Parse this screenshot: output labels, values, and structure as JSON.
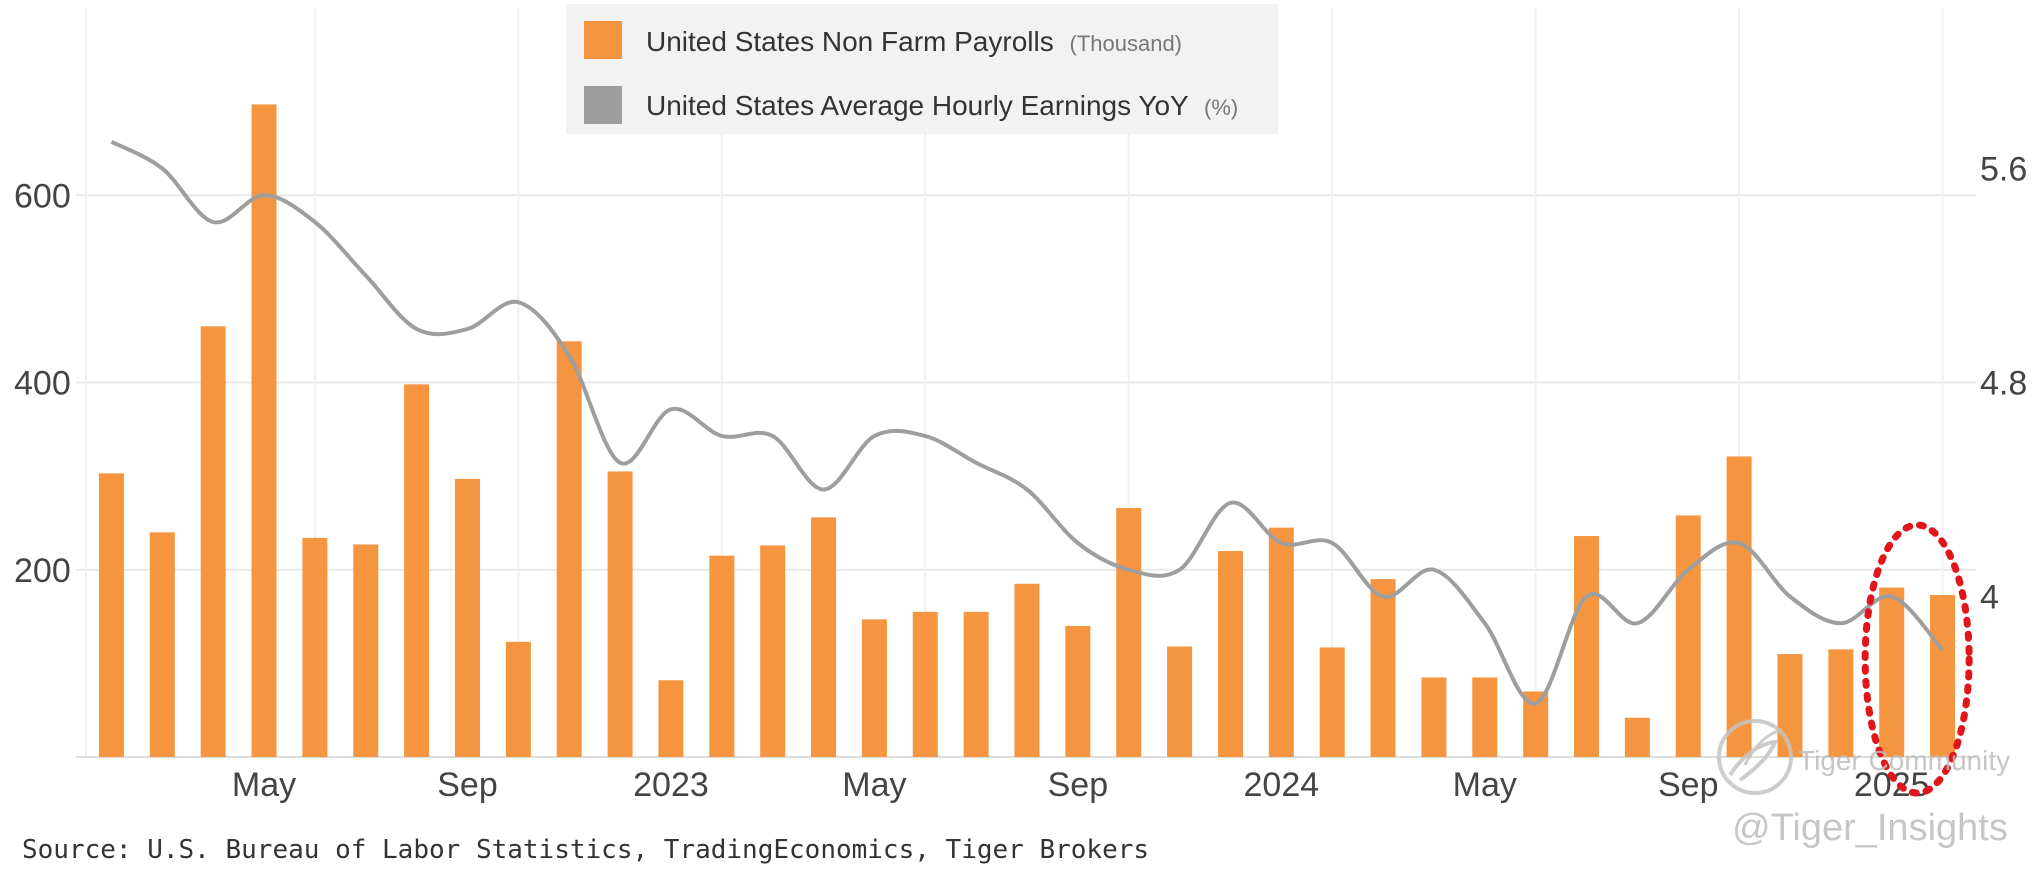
{
  "colors": {
    "payrolls": "#f5953f",
    "earnings": "#9e9e9e",
    "highlight": "#e0161b",
    "grid": "#e9e9e9",
    "legend_bg": "#f2f2f2"
  },
  "legend": {
    "items": [
      {
        "label": "United States Non Farm Payrolls",
        "unit": "(Thousand)"
      },
      {
        "label": "United States Average Hourly Earnings YoY",
        "unit": "(%)"
      }
    ]
  },
  "source": "Source: U.S. Bureau of Labor Statistics, TradingEconomics, Tiger Brokers",
  "watermark": {
    "community": "Tiger Community",
    "handle": "@Tiger_Insights"
  },
  "chart_data": {
    "type": "bar",
    "title": "",
    "xlabel": "",
    "ylabel": "",
    "x_tick_labels": [
      "May",
      "Sep",
      "2023",
      "May",
      "Sep",
      "2024",
      "May",
      "Sep",
      "2025"
    ],
    "x_tick_positions": [
      3,
      7,
      11,
      15,
      19,
      23,
      27,
      31,
      35
    ],
    "ylim_left": [
      0,
      800
    ],
    "yticks_left": [
      200,
      400,
      600
    ],
    "ylim_right": [
      3.4,
      6.2
    ],
    "yticks_right": [
      "4",
      "4.8",
      "5.6"
    ],
    "yticks_right_values": [
      4.0,
      4.8,
      5.6
    ],
    "grid": true,
    "legend_position": "top-center",
    "series": [
      {
        "name": "United States Non Farm Payrolls",
        "type": "bar",
        "axis": "left",
        "values": [
          303,
          240,
          460,
          697,
          234,
          227,
          398,
          297,
          123,
          444,
          305,
          82,
          215,
          226,
          256,
          147,
          155,
          155,
          185,
          140,
          266,
          118,
          220,
          245,
          117,
          190,
          85,
          85,
          70,
          236,
          42,
          258,
          321,
          110,
          115,
          181,
          173
        ]
      },
      {
        "name": "United States Average Hourly Earnings YoY",
        "type": "line",
        "axis": "right",
        "values": [
          5.7,
          5.6,
          5.4,
          5.5,
          5.4,
          5.2,
          5.0,
          5.0,
          5.1,
          4.9,
          4.5,
          4.7,
          4.6,
          4.6,
          4.4,
          4.6,
          4.6,
          4.5,
          4.4,
          4.2,
          4.1,
          4.1,
          4.35,
          4.2,
          4.2,
          4.0,
          4.1,
          3.9,
          3.6,
          4.0,
          3.9,
          4.1,
          4.2,
          4.0,
          3.9,
          4.0,
          3.8
        ]
      }
    ],
    "annotations": [
      {
        "type": "dashed-ellipse",
        "indices": [
          35,
          36
        ],
        "color": "#e0161b"
      }
    ]
  }
}
